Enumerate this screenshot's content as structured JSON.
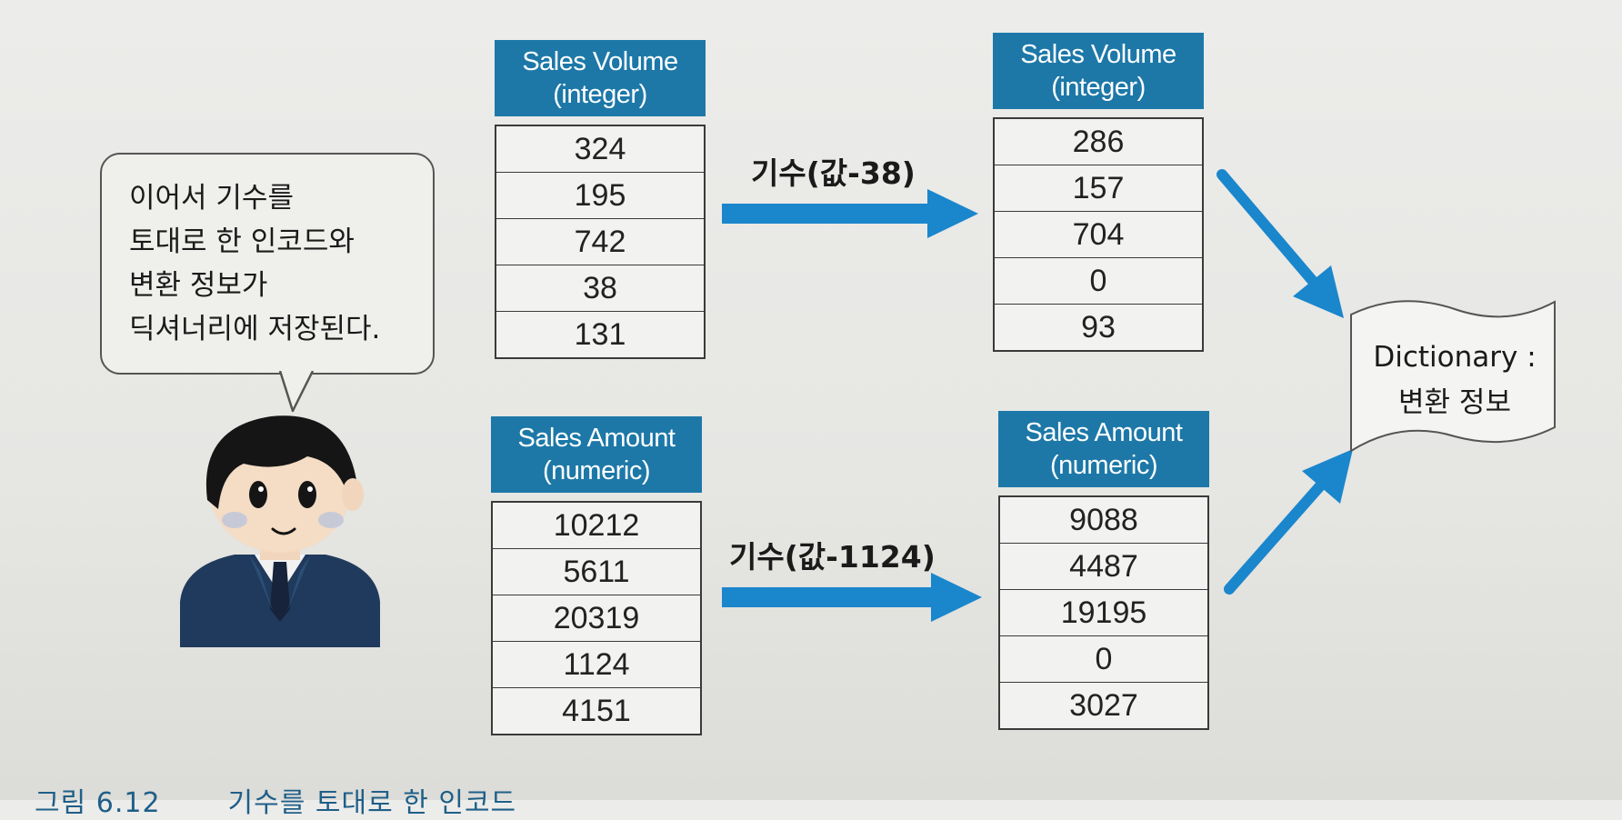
{
  "bubble": {
    "lines": [
      "이어서 기수를",
      "토대로 한 인코드와",
      "변환 정보가",
      "딕셔너리에 저장된다."
    ]
  },
  "tables": {
    "volume_before": {
      "header_line1": "Sales Volume",
      "header_line2": "(integer)",
      "values": [
        "324",
        "195",
        "742",
        "38",
        "131"
      ]
    },
    "volume_after": {
      "header_line1": "Sales Volume",
      "header_line2": "(integer)",
      "values": [
        "286",
        "157",
        "704",
        "0",
        "93"
      ]
    },
    "amount_before": {
      "header_line1": "Sales Amount",
      "header_line2": "(numeric)",
      "values": [
        "10212",
        "5611",
        "20319",
        "1124",
        "4151"
      ]
    },
    "amount_after": {
      "header_line1": "Sales Amount",
      "header_line2": "(numeric)",
      "values": [
        "9088",
        "4487",
        "19195",
        "0",
        "3027"
      ]
    }
  },
  "arrows": {
    "volume_label": "기수(값-38)",
    "amount_label": "기수(값-1124)"
  },
  "dictionary": {
    "line1": "Dictionary :",
    "line2": "변환 정보"
  },
  "caption": {
    "figure": "그림 6.12",
    "title": "기수를 토대로 한 인코드"
  },
  "colors": {
    "header_blue": "#1d78a8",
    "arrow_blue": "#1a86cc",
    "suit_navy": "#1f3a5c"
  }
}
